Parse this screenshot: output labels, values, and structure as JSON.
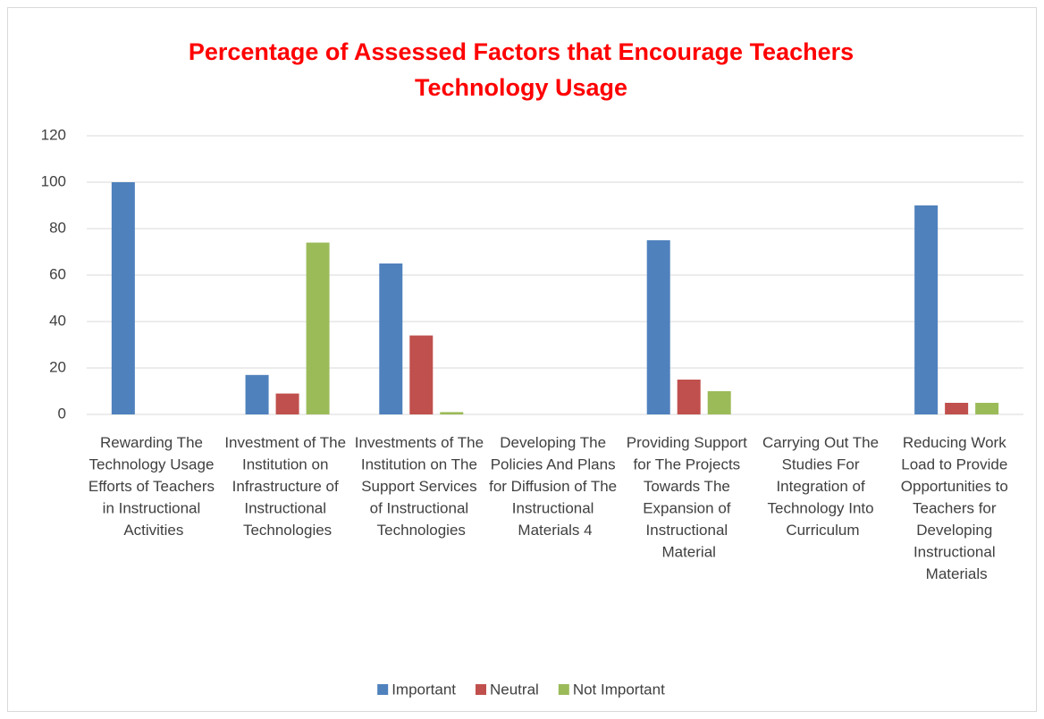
{
  "chart_data": {
    "type": "bar",
    "title": [
      "Percentage of Assessed Factors that Encourage Teachers",
      "Technology Usage"
    ],
    "categories": [
      "Rewarding The Technology Usage Efforts of Teachers in Instructional Activities",
      "Investment of The Institution on Infrastructure of Instructional Technologies",
      "Investments of The Institution on The Support Services of Instructional Technologies",
      "Developing The Policies And Plans for Diffusion of The Instructional Materials 4",
      "Providing Support for The Projects Towards The Expansion of Instructional Material",
      "Carrying Out The Studies For Integration of Technology Into Curriculum",
      "Reducing Work Load to Provide Opportunities to Teachers for Developing Instructional Materials"
    ],
    "series": [
      {
        "name": "Important",
        "color": "#4f81bd",
        "values": [
          100,
          17,
          65,
          0,
          75,
          0,
          90
        ]
      },
      {
        "name": "Neutral",
        "color": "#c0504d",
        "values": [
          0,
          9,
          34,
          0,
          15,
          0,
          5
        ]
      },
      {
        "name": "Not Important",
        "color": "#9bbb59",
        "values": [
          0,
          74,
          1,
          0,
          10,
          0,
          5
        ]
      }
    ],
    "ylim": [
      0,
      120
    ],
    "yticks": [
      0,
      20,
      40,
      60,
      80,
      100,
      120
    ],
    "grid": true,
    "legend": "bottom"
  }
}
